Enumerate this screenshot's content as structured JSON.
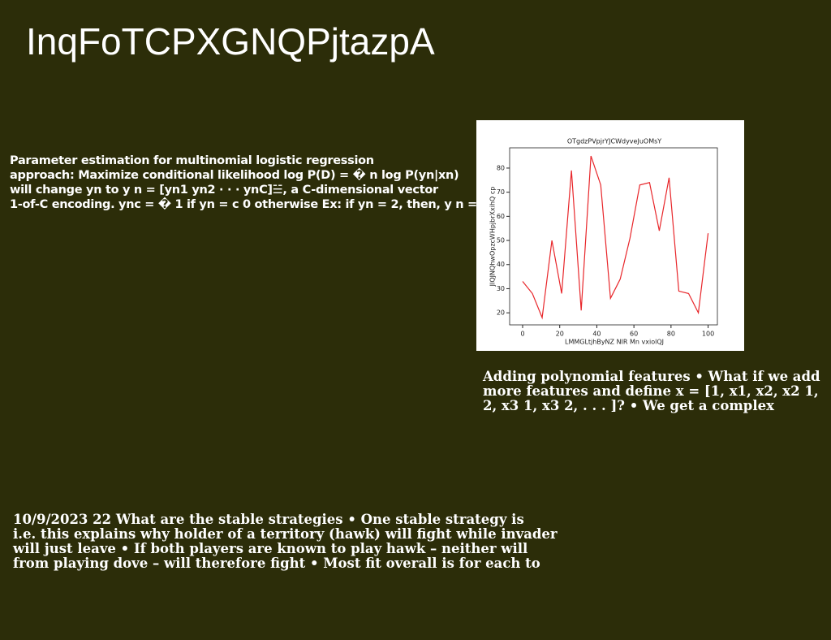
{
  "title": "InqFoTCPXGNQPjtazpA",
  "blocks": [
    {
      "lines": [
        "Parameter estimation for multinomial logistic regression",
        "approach: Maximize conditional likelihood log P(D) = � n log P(yn|xn)",
        "will change yn to y n = [yn1 yn2 · · · ynC]☱, a C-dimensional vector",
        "1-of-C encoding. ync = � 1 if yn = c 0 otherwise Ex: if yn = 2, then, y n ="
      ]
    },
    {
      "lines": [
        "Adding polynomial features • What if we add",
        "more features and define x = [1, x1, x2, x2 1,",
        "2, x3 1, x3 2, . . . ]? • We get a complex"
      ]
    },
    {
      "lines": [
        "10/9/2023 22 What are the stable strategies • One stable strategy is",
        "i.e. this explains why holder of a territory (hawk) will fight while invader",
        "will just leave • If both players are known to play hawk – neither will",
        "from playing dove – will therefore fight • Most fit overall is for each to"
      ]
    }
  ],
  "chart_data": {
    "type": "line",
    "title": "OTgdzPVpjrYJCWdyveJuOMsY",
    "x_label": "LMMGLtjhByNZ NIR Mn vxiolQJ",
    "y_label": "JIQJNQhwOpzcWHpjbrXxihQ cp",
    "x": [
      0,
      5.26,
      10.53,
      15.79,
      21.05,
      26.32,
      31.58,
      36.84,
      42.11,
      47.37,
      52.63,
      57.89,
      63.16,
      68.42,
      73.68,
      78.95,
      84.21,
      89.47,
      94.74,
      100
    ],
    "series": [
      {
        "color": "#e8262a",
        "values": [
          33,
          28,
          18,
          50,
          28,
          79,
          21,
          85,
          73,
          26,
          34,
          51,
          73,
          74,
          54,
          76,
          29,
          28,
          20,
          53
        ]
      }
    ],
    "xlim": [
      -7,
      105
    ],
    "ylim": [
      15,
      88.4
    ],
    "xticks": [
      0,
      20,
      40,
      60,
      80,
      100
    ],
    "yticks": [
      20,
      30,
      40,
      50,
      60,
      70,
      80
    ]
  }
}
